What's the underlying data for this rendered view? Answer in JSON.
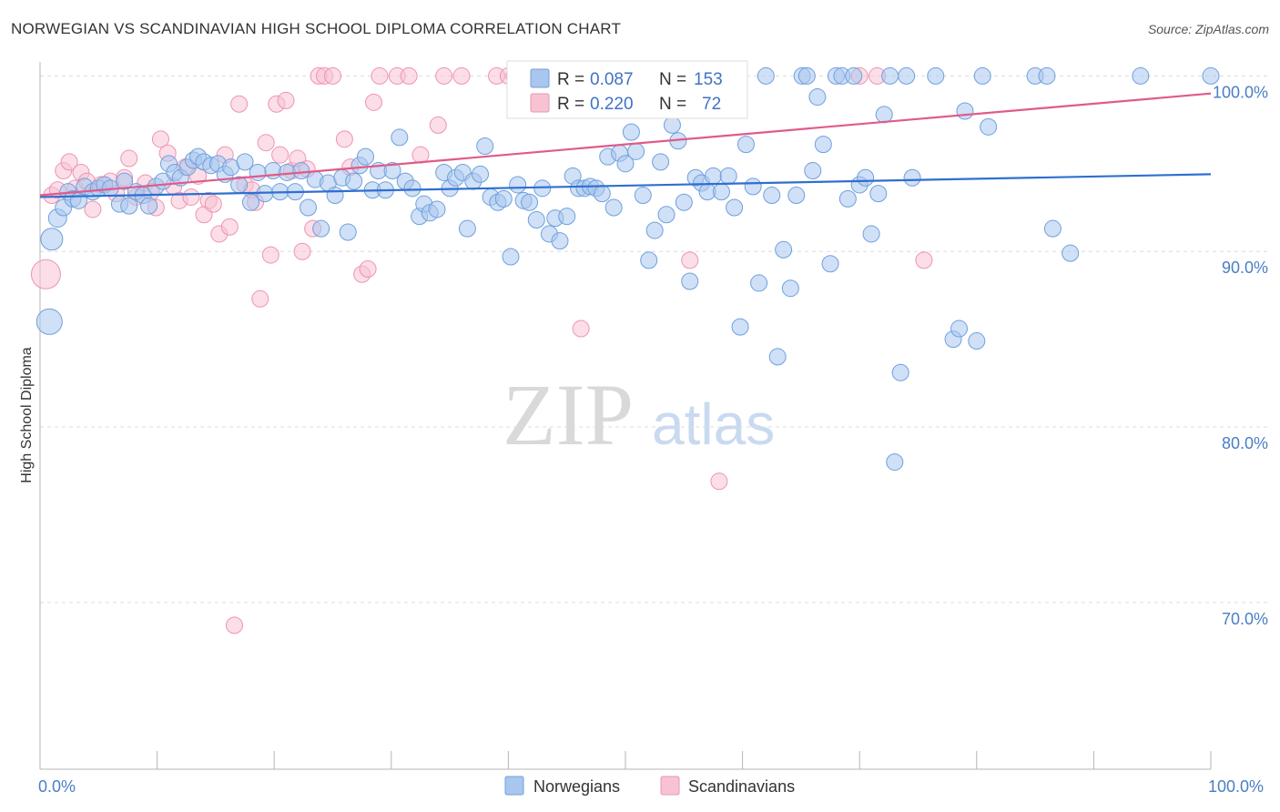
{
  "title": "NORWEGIAN VS SCANDINAVIAN HIGH SCHOOL DIPLOMA CORRELATION CHART",
  "source": "Source: ZipAtlas.com",
  "watermark": {
    "zip": "ZIP",
    "atlas": "atlas"
  },
  "colors": {
    "norwegians": "#6fa0dd",
    "norwegians_fill": "#a9c6ee",
    "norwegians_line": "#2f6fcf",
    "scandinavians": "#ee94b1",
    "scandinavians_fill": "#f7c3d3",
    "scandinavians_line": "#e05a8a",
    "tick_text": "#4a7ec6",
    "grid": "#dcdcdc"
  },
  "legend_top": {
    "rows": [
      {
        "r_label": "R =",
        "r_value": "0.087",
        "n_label": "N =",
        "n_value": "153"
      },
      {
        "r_label": "R =",
        "r_value": "0.220",
        "n_label": "N =",
        "n_value": "72"
      }
    ]
  },
  "legend_bottom": [
    "Norwegians",
    "Scandinavians"
  ],
  "chart_data": {
    "type": "scatter",
    "xlabel": "",
    "ylabel": "High School Diploma",
    "x_tick_labels": [
      "0.0%",
      "100.0%"
    ],
    "y_tick_labels": [
      "100.0%",
      "90.0%",
      "80.0%",
      "70.0%"
    ],
    "y_ticks": [
      100,
      90,
      80,
      70
    ],
    "xlim": [
      0,
      100
    ],
    "ylim": [
      60.5,
      100.8
    ],
    "grid": "horizontal dashed",
    "legend": "top-center and bottom-center",
    "series": [
      {
        "name": "Norwegians",
        "trend": {
          "x": [
            0,
            100
          ],
          "y": [
            93.1,
            94.4
          ]
        },
        "points": [
          [
            0.8,
            86.0,
            14
          ],
          [
            1.0,
            90.7,
            12
          ],
          [
            1.5,
            91.9,
            10
          ],
          [
            2.0,
            92.5,
            9
          ],
          [
            2.4,
            93.4,
            9
          ],
          [
            2.8,
            93.0,
            9
          ],
          [
            3.3,
            92.9,
            9
          ],
          [
            3.8,
            93.7,
            9
          ],
          [
            4.5,
            93.4,
            9
          ],
          [
            5.0,
            93.6,
            9
          ],
          [
            5.5,
            93.8,
            9
          ],
          [
            6.0,
            93.6,
            9
          ],
          [
            6.8,
            92.7,
            9
          ],
          [
            7.2,
            94.0,
            9
          ],
          [
            7.6,
            92.6,
            9
          ],
          [
            8.2,
            93.4,
            9
          ],
          [
            8.8,
            93.2,
            9
          ],
          [
            9.3,
            92.6,
            9
          ],
          [
            9.9,
            93.7,
            9
          ],
          [
            10.5,
            94.0,
            9
          ],
          [
            11.0,
            95.0,
            9
          ],
          [
            11.5,
            94.5,
            9
          ],
          [
            12.0,
            94.2,
            9
          ],
          [
            12.6,
            94.8,
            9
          ],
          [
            13.1,
            95.2,
            9
          ],
          [
            13.5,
            95.4,
            9
          ],
          [
            14.0,
            95.1,
            9
          ],
          [
            14.6,
            94.9,
            9
          ],
          [
            15.2,
            95.0,
            9
          ],
          [
            15.8,
            94.4,
            9
          ],
          [
            16.3,
            94.8,
            9
          ],
          [
            17.0,
            93.8,
            9
          ],
          [
            17.5,
            95.1,
            9
          ],
          [
            18.0,
            92.8,
            9
          ],
          [
            18.6,
            94.5,
            9
          ],
          [
            19.2,
            93.3,
            9
          ],
          [
            19.9,
            94.6,
            9
          ],
          [
            20.5,
            93.4,
            9
          ],
          [
            21.1,
            94.5,
            9
          ],
          [
            21.8,
            93.4,
            9
          ],
          [
            22.3,
            94.6,
            9
          ],
          [
            22.9,
            92.5,
            9
          ],
          [
            23.5,
            94.1,
            9
          ],
          [
            24.0,
            91.3,
            9
          ],
          [
            24.6,
            93.9,
            9
          ],
          [
            25.2,
            93.2,
            9
          ],
          [
            25.8,
            94.2,
            9
          ],
          [
            26.3,
            91.1,
            9
          ],
          [
            26.8,
            94.0,
            9
          ],
          [
            27.3,
            94.9,
            9
          ],
          [
            27.8,
            95.4,
            9
          ],
          [
            28.4,
            93.5,
            9
          ],
          [
            28.9,
            94.6,
            9
          ],
          [
            29.5,
            93.5,
            9
          ],
          [
            30.1,
            94.6,
            9
          ],
          [
            30.7,
            96.5,
            9
          ],
          [
            31.2,
            94.0,
            9
          ],
          [
            31.8,
            93.6,
            9
          ],
          [
            32.4,
            92.0,
            9
          ],
          [
            32.8,
            92.7,
            9
          ],
          [
            33.3,
            92.2,
            9
          ],
          [
            33.9,
            92.4,
            9
          ],
          [
            34.5,
            94.5,
            9
          ],
          [
            35.0,
            93.6,
            9
          ],
          [
            35.5,
            94.2,
            9
          ],
          [
            36.1,
            94.5,
            9
          ],
          [
            36.5,
            91.3,
            9
          ],
          [
            37.0,
            94.0,
            9
          ],
          [
            37.6,
            94.4,
            9
          ],
          [
            38.0,
            96.0,
            9
          ],
          [
            38.5,
            93.1,
            9
          ],
          [
            39.1,
            92.8,
            9
          ],
          [
            39.6,
            93.0,
            9
          ],
          [
            40.2,
            89.7,
            9
          ],
          [
            40.8,
            93.8,
            9
          ],
          [
            41.3,
            92.9,
            9
          ],
          [
            41.8,
            92.8,
            9
          ],
          [
            42.4,
            91.8,
            9
          ],
          [
            42.9,
            93.6,
            9
          ],
          [
            43.5,
            91.0,
            9
          ],
          [
            44.0,
            91.9,
            9
          ],
          [
            44.4,
            90.6,
            9
          ],
          [
            45.0,
            92.0,
            9
          ],
          [
            45.5,
            94.3,
            9
          ],
          [
            46.0,
            93.6,
            9
          ],
          [
            46.5,
            93.6,
            9
          ],
          [
            47.0,
            93.7,
            9
          ],
          [
            47.5,
            93.6,
            9
          ],
          [
            48.0,
            93.3,
            9
          ],
          [
            48.5,
            95.4,
            9
          ],
          [
            49.0,
            92.5,
            9
          ],
          [
            49.5,
            95.6,
            9
          ],
          [
            50.0,
            95.0,
            9
          ],
          [
            50.5,
            96.8,
            9
          ],
          [
            50.9,
            95.7,
            9
          ],
          [
            51.5,
            93.2,
            9
          ],
          [
            52.0,
            89.5,
            9
          ],
          [
            52.5,
            91.2,
            9
          ],
          [
            53.0,
            95.1,
            9
          ],
          [
            53.5,
            92.1,
            9
          ],
          [
            54.0,
            97.2,
            9
          ],
          [
            54.5,
            96.3,
            9
          ],
          [
            55.0,
            92.8,
            9
          ],
          [
            55.5,
            88.3,
            9
          ],
          [
            56.0,
            94.2,
            9
          ],
          [
            56.5,
            93.9,
            9
          ],
          [
            57.0,
            93.4,
            9
          ],
          [
            57.5,
            94.3,
            9
          ],
          [
            58.2,
            93.4,
            9
          ],
          [
            58.8,
            94.3,
            9
          ],
          [
            59.3,
            92.5,
            9
          ],
          [
            59.8,
            85.7,
            9
          ],
          [
            60.3,
            96.1,
            9
          ],
          [
            60.9,
            93.7,
            9
          ],
          [
            61.4,
            88.2,
            9
          ],
          [
            62.0,
            100.0,
            9
          ],
          [
            62.5,
            93.2,
            9
          ],
          [
            63.0,
            84.0,
            9
          ],
          [
            63.5,
            90.1,
            9
          ],
          [
            64.1,
            87.9,
            9
          ],
          [
            64.6,
            93.2,
            9
          ],
          [
            65.1,
            100.0,
            9
          ],
          [
            65.5,
            100.0,
            9
          ],
          [
            66.0,
            94.6,
            9
          ],
          [
            66.4,
            98.8,
            9
          ],
          [
            66.9,
            96.1,
            9
          ],
          [
            67.5,
            89.3,
            9
          ],
          [
            68.0,
            100.0,
            9
          ],
          [
            68.5,
            100.0,
            9
          ],
          [
            69.0,
            93.0,
            9
          ],
          [
            69.5,
            100.0,
            9
          ],
          [
            70.0,
            93.8,
            9
          ],
          [
            70.5,
            94.2,
            9
          ],
          [
            71.0,
            91.0,
            9
          ],
          [
            71.6,
            93.3,
            9
          ],
          [
            72.1,
            97.8,
            9
          ],
          [
            72.6,
            100.0,
            9
          ],
          [
            73.0,
            78.0,
            9
          ],
          [
            73.5,
            83.1,
            9
          ],
          [
            74.0,
            100.0,
            9
          ],
          [
            74.5,
            94.2,
            9
          ],
          [
            76.5,
            100.0,
            9
          ],
          [
            78.0,
            85.0,
            9
          ],
          [
            78.5,
            85.6,
            9
          ],
          [
            79.0,
            98.0,
            9
          ],
          [
            80.0,
            84.9,
            9
          ],
          [
            80.5,
            100.0,
            9
          ],
          [
            81.0,
            97.1,
            9
          ],
          [
            85.0,
            100.0,
            9
          ],
          [
            86.0,
            100.0,
            9
          ],
          [
            86.5,
            91.3,
            9
          ],
          [
            88.0,
            89.9,
            9
          ],
          [
            94.0,
            100.0,
            9
          ],
          [
            100.0,
            100.0,
            9
          ]
        ]
      },
      {
        "name": "Scandinavians",
        "trend": {
          "x": [
            0,
            100
          ],
          "y": [
            93.2,
            99.0
          ]
        },
        "points": [
          [
            0.5,
            88.7,
            16
          ],
          [
            1.0,
            93.2,
            9
          ],
          [
            1.5,
            93.5,
            9
          ],
          [
            2.0,
            94.6,
            9
          ],
          [
            2.5,
            95.1,
            9
          ],
          [
            3.0,
            93.6,
            9
          ],
          [
            3.5,
            94.5,
            9
          ],
          [
            4.0,
            94.0,
            9
          ],
          [
            4.5,
            92.4,
            9
          ],
          [
            5.2,
            93.8,
            9
          ],
          [
            6.0,
            94.0,
            9
          ],
          [
            6.5,
            93.3,
            9
          ],
          [
            7.2,
            94.2,
            9
          ],
          [
            7.6,
            95.3,
            9
          ],
          [
            8.2,
            93.1,
            9
          ],
          [
            9.0,
            93.9,
            9
          ],
          [
            9.5,
            93.4,
            9
          ],
          [
            9.9,
            92.5,
            9
          ],
          [
            10.3,
            96.4,
            9
          ],
          [
            10.9,
            95.6,
            9
          ],
          [
            11.4,
            93.7,
            9
          ],
          [
            11.9,
            92.9,
            9
          ],
          [
            12.4,
            94.8,
            9
          ],
          [
            12.9,
            93.1,
            9
          ],
          [
            13.5,
            94.3,
            9
          ],
          [
            14.0,
            92.1,
            9
          ],
          [
            14.4,
            92.9,
            9
          ],
          [
            14.8,
            92.7,
            9
          ],
          [
            15.3,
            91.0,
            9
          ],
          [
            15.8,
            95.5,
            9
          ],
          [
            16.2,
            91.4,
            9
          ],
          [
            16.6,
            68.7,
            9
          ],
          [
            17.0,
            98.4,
            9
          ],
          [
            17.5,
            93.8,
            9
          ],
          [
            18.1,
            93.5,
            9
          ],
          [
            18.4,
            92.8,
            9
          ],
          [
            18.8,
            87.3,
            9
          ],
          [
            19.3,
            96.2,
            9
          ],
          [
            19.7,
            89.8,
            9
          ],
          [
            20.2,
            98.4,
            9
          ],
          [
            20.5,
            95.5,
            9
          ],
          [
            21.0,
            98.6,
            9
          ],
          [
            21.5,
            94.6,
            9
          ],
          [
            22.0,
            95.3,
            9
          ],
          [
            22.4,
            90.0,
            9
          ],
          [
            22.8,
            94.7,
            9
          ],
          [
            23.3,
            91.3,
            9
          ],
          [
            23.8,
            100.0,
            9
          ],
          [
            24.3,
            100.0,
            9
          ],
          [
            25.0,
            100.0,
            9
          ],
          [
            26.0,
            96.4,
            9
          ],
          [
            26.5,
            94.8,
            9
          ],
          [
            27.5,
            88.7,
            9
          ],
          [
            28.0,
            89.0,
            9
          ],
          [
            28.5,
            98.5,
            9
          ],
          [
            29.0,
            100.0,
            9
          ],
          [
            30.5,
            100.0,
            9
          ],
          [
            31.5,
            100.0,
            9
          ],
          [
            32.5,
            95.5,
            9
          ],
          [
            34.0,
            97.2,
            9
          ],
          [
            34.5,
            100.0,
            9
          ],
          [
            36.0,
            100.0,
            9
          ],
          [
            39.0,
            100.0,
            9
          ],
          [
            40.0,
            100.0,
            9
          ],
          [
            40.5,
            100.0,
            9
          ],
          [
            42.0,
            99.4,
            9
          ],
          [
            46.2,
            85.6,
            9
          ],
          [
            55.5,
            89.5,
            9
          ],
          [
            58.0,
            76.9,
            9
          ],
          [
            70.0,
            100.0,
            9
          ],
          [
            71.5,
            100.0,
            9
          ],
          [
            75.5,
            89.5,
            9
          ]
        ]
      }
    ]
  }
}
